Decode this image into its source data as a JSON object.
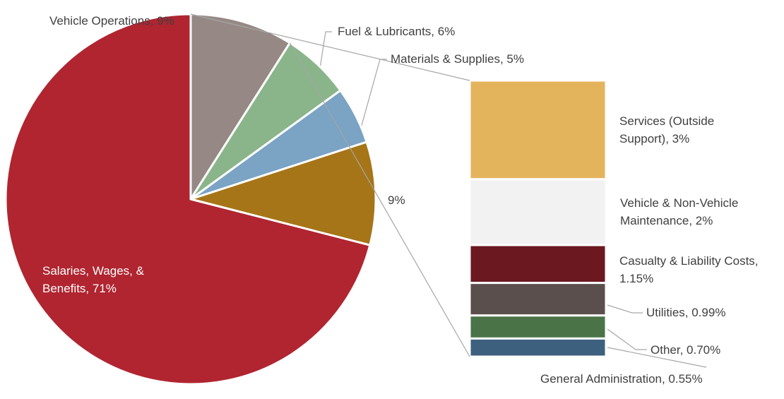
{
  "chart_data": {
    "type": "pie",
    "values": [
      9,
      6,
      5,
      9,
      71
    ],
    "value_labels": [
      "Vehicle Operations, 9%",
      "Fuel & Lubricants, 6%",
      "Materials & Supplies, 5%",
      "9%",
      "Salaries, Wages, & Benefits, 71%"
    ],
    "colors": [
      "#968985",
      "#8ab58a",
      "#7aa3c4",
      "#a67518",
      "#b02530"
    ],
    "bar": {
      "values": [
        3,
        2,
        1.15,
        0.99,
        0.7,
        0.55
      ],
      "value_labels": [
        "Services (Outside Support), 3%",
        "Vehicle & Non-Vehicle Maintenance, 2%",
        "Casualty & Liability Costs, 1.15%",
        "Utilities, 0.99%",
        "Other, 0.70%",
        "General Administration, 0.55%"
      ],
      "colors": [
        "#e4b45c",
        "#f2f2f2",
        "#6b1820",
        "#5b4f4d",
        "#4a7348",
        "#3e607f"
      ]
    }
  }
}
